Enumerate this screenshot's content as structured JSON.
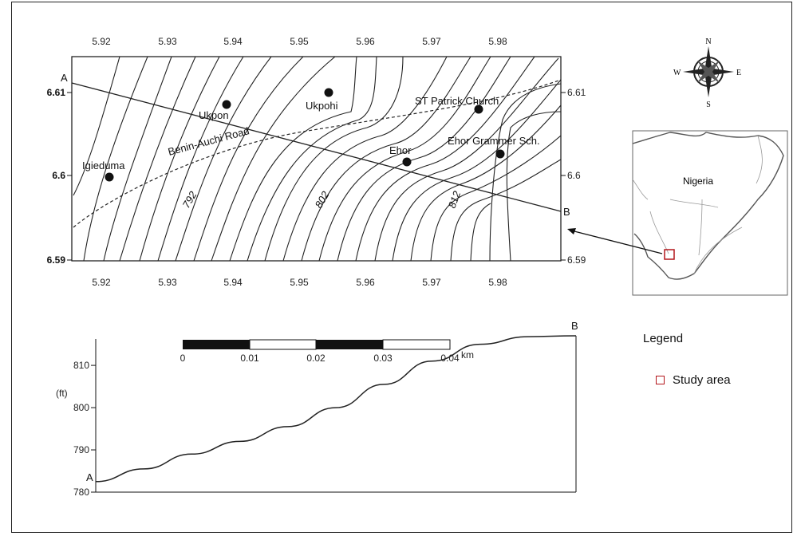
{
  "map": {
    "x_ticks": [
      "5.92",
      "5.93",
      "5.94",
      "5.95",
      "5.96",
      "5.97",
      "5.98"
    ],
    "y_ticks_left": [
      "6.61",
      "6.6",
      "6.59"
    ],
    "y_ticks_right": [
      "6.61",
      "6.6",
      "6.59"
    ],
    "places": [
      {
        "name": "Igieduma"
      },
      {
        "name": "Ukpon"
      },
      {
        "name": "Ukpohi"
      },
      {
        "name": "ST Patrick Church"
      },
      {
        "name": "Ehor"
      },
      {
        "name": "Ehor Grammer Sch."
      }
    ],
    "road_label": "Benin-Auchi Road",
    "contour_labels": [
      "792",
      "802",
      "812"
    ],
    "profile_endpoints": {
      "start": "A",
      "end": "B"
    }
  },
  "scale_bar": {
    "labels": [
      "0",
      "0.01",
      "0.02",
      "0.03",
      "0.04"
    ],
    "unit": "km"
  },
  "compass": {
    "n": "N",
    "s": "S",
    "e": "E",
    "w": "W"
  },
  "inset": {
    "country": "Nigeria"
  },
  "profile": {
    "start_label": "A",
    "end_label": "B",
    "unit_label": "(ft)",
    "y_ticks": [
      "810",
      "800",
      "790",
      "780"
    ]
  },
  "legend": {
    "title": "Legend",
    "items": [
      {
        "label": "Study area",
        "color": "#b3161b"
      }
    ]
  },
  "chart_data": {
    "type": "line",
    "ylabel": "(ft)",
    "ylim": [
      780,
      817
    ],
    "x": [
      0,
      0.1,
      0.2,
      0.3,
      0.4,
      0.5,
      0.6,
      0.7,
      0.8,
      0.9,
      1.0
    ],
    "series": [
      {
        "values": [
          782.5,
          785.5,
          789,
          792,
          795.5,
          800,
          805.5,
          811,
          815,
          816.8,
          817
        ]
      }
    ]
  }
}
